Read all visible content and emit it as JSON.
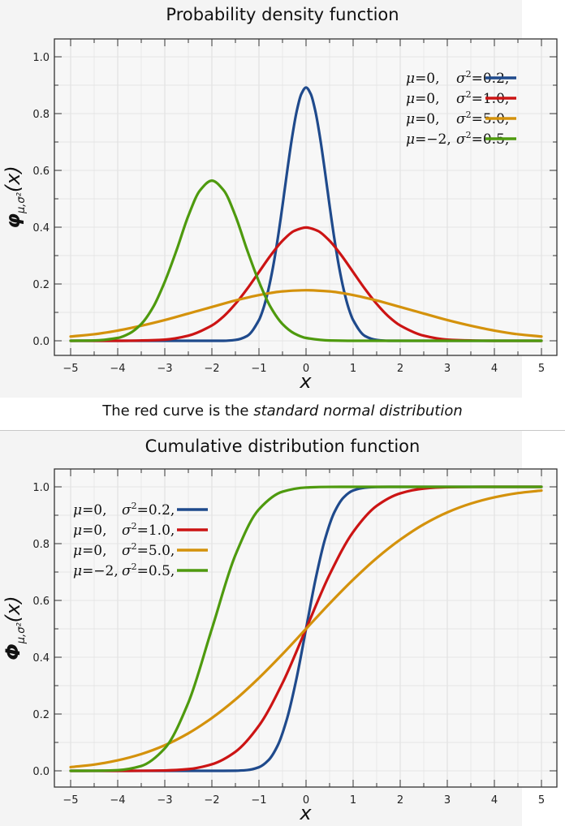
{
  "caption": {
    "prefix": "The red curve is the ",
    "emphasis": "standard normal distribution"
  },
  "chart_data": [
    {
      "type": "line",
      "title": "Probability density function",
      "xlabel": "x",
      "ylabel": "φμ,σ²(x)",
      "ylabel_main": "φ",
      "ylabel_sub": "μ,σ²",
      "ylabel_arg": "(x)",
      "xlim": [
        -5,
        5
      ],
      "ylim": [
        0,
        1.0
      ],
      "xticks": [
        -5,
        -4,
        -3,
        -2,
        -1,
        0,
        1,
        2,
        3,
        4,
        5
      ],
      "xtick_labels": [
        "−5",
        "−4",
        "−3",
        "−2",
        "−1",
        "0",
        "1",
        "2",
        "3",
        "4",
        "5"
      ],
      "yticks": [
        0.0,
        0.2,
        0.4,
        0.6,
        0.8,
        1.0
      ],
      "ytick_labels": [
        "0.0",
        "0.2",
        "0.4",
        "0.6",
        "0.8",
        "1.0"
      ],
      "grid": true,
      "legend_position": "top-right",
      "series": [
        {
          "mu": "0",
          "var": "0.2",
          "color": "#1f4a8c",
          "x": [
            -5,
            -4.5,
            -4,
            -3.5,
            -3,
            -2.5,
            -2,
            -1.75,
            -1.5,
            -1.25,
            -1,
            -0.9,
            -0.8,
            -0.7,
            -0.6,
            -0.5,
            -0.4,
            -0.3,
            -0.2,
            -0.1,
            0,
            0.1,
            0.2,
            0.3,
            0.4,
            0.5,
            0.6,
            0.7,
            0.8,
            0.9,
            1,
            1.25,
            1.5,
            1.75,
            2,
            2.5,
            3,
            3.5,
            4,
            4.5,
            5
          ],
          "y": [
            0,
            0,
            0,
            0,
            0,
            0,
            0,
            0,
            0.003,
            0.017,
            0.073,
            0.117,
            0.18,
            0.261,
            0.361,
            0.476,
            0.598,
            0.713,
            0.807,
            0.869,
            0.892,
            0.869,
            0.807,
            0.713,
            0.598,
            0.476,
            0.361,
            0.261,
            0.18,
            0.117,
            0.073,
            0.017,
            0.003,
            0,
            0,
            0,
            0,
            0,
            0,
            0,
            0
          ]
        },
        {
          "mu": "0",
          "var": "1.0",
          "color": "#cc1414",
          "x": [
            -5,
            -4.5,
            -4,
            -3.5,
            -3,
            -2.5,
            -2,
            -1.75,
            -1.5,
            -1.25,
            -1,
            -0.75,
            -0.5,
            -0.25,
            0,
            0.25,
            0.5,
            0.75,
            1,
            1.25,
            1.5,
            1.75,
            2,
            2.5,
            3,
            3.5,
            4,
            4.5,
            5
          ],
          "y": [
            0,
            0,
            0,
            0.001,
            0.004,
            0.018,
            0.054,
            0.086,
            0.13,
            0.183,
            0.242,
            0.301,
            0.352,
            0.387,
            0.399,
            0.387,
            0.352,
            0.301,
            0.242,
            0.183,
            0.13,
            0.086,
            0.054,
            0.018,
            0.004,
            0.001,
            0,
            0,
            0
          ]
        },
        {
          "mu": "0",
          "var": "5.0",
          "color": "#d4920c",
          "x": [
            -5,
            -4.5,
            -4,
            -3.5,
            -3,
            -2.5,
            -2,
            -1.5,
            -1,
            -0.5,
            0,
            0.5,
            1,
            1.5,
            2,
            2.5,
            3,
            3.5,
            4,
            4.5,
            5
          ],
          "y": [
            0.015,
            0.023,
            0.036,
            0.053,
            0.073,
            0.096,
            0.119,
            0.142,
            0.161,
            0.174,
            0.178,
            0.174,
            0.161,
            0.142,
            0.119,
            0.096,
            0.073,
            0.053,
            0.036,
            0.023,
            0.015
          ]
        },
        {
          "mu": "−2",
          "var": "0.5",
          "color": "#4e9a0e",
          "x": [
            -5,
            -4.5,
            -4,
            -3.75,
            -3.5,
            -3.25,
            -3,
            -2.75,
            -2.5,
            -2.25,
            -2,
            -1.75,
            -1.5,
            -1.25,
            -1,
            -0.75,
            -0.5,
            -0.25,
            0,
            0.5,
            1,
            2,
            3,
            4,
            5
          ],
          "y": [
            0,
            0.001,
            0.01,
            0.026,
            0.059,
            0.118,
            0.208,
            0.319,
            0.44,
            0.53,
            0.564,
            0.53,
            0.44,
            0.319,
            0.208,
            0.118,
            0.059,
            0.026,
            0.01,
            0.001,
            0,
            0,
            0,
            0,
            0
          ]
        }
      ]
    },
    {
      "type": "line",
      "title": "Cumulative distribution function",
      "xlabel": "x",
      "ylabel": "Φμ,σ²(x)",
      "ylabel_main": "Φ",
      "ylabel_sub": "μ,σ²",
      "ylabel_arg": "(x)",
      "xlim": [
        -5,
        5
      ],
      "ylim": [
        0,
        1.0
      ],
      "xticks": [
        -5,
        -4,
        -3,
        -2,
        -1,
        0,
        1,
        2,
        3,
        4,
        5
      ],
      "xtick_labels": [
        "−5",
        "−4",
        "−3",
        "−2",
        "−1",
        "0",
        "1",
        "2",
        "3",
        "4",
        "5"
      ],
      "yticks": [
        0.0,
        0.2,
        0.4,
        0.6,
        0.8,
        1.0
      ],
      "ytick_labels": [
        "0.0",
        "0.2",
        "0.4",
        "0.6",
        "0.8",
        "1.0"
      ],
      "grid": true,
      "legend_position": "top-left",
      "series": [
        {
          "mu": "0",
          "var": "0.2",
          "color": "#1f4a8c",
          "x": [
            -5,
            -2,
            -1.5,
            -1.25,
            -1,
            -0.8,
            -0.6,
            -0.4,
            -0.2,
            0,
            0.2,
            0.4,
            0.6,
            0.8,
            1,
            1.25,
            1.5,
            2,
            5
          ],
          "y": [
            0,
            0,
            0.0004,
            0.0026,
            0.0127,
            0.037,
            0.09,
            0.186,
            0.327,
            0.5,
            0.673,
            0.814,
            0.91,
            0.963,
            0.987,
            0.997,
            0.9996,
            1,
            1
          ]
        },
        {
          "mu": "0",
          "var": "1.0",
          "color": "#cc1414",
          "x": [
            -5,
            -4,
            -3.5,
            -3,
            -2.5,
            -2,
            -1.5,
            -1,
            -0.5,
            0,
            0.5,
            1,
            1.5,
            2,
            2.5,
            3,
            3.5,
            4,
            5
          ],
          "y": [
            0,
            0,
            0.0002,
            0.0013,
            0.006,
            0.023,
            0.067,
            0.159,
            0.309,
            0.5,
            0.691,
            0.841,
            0.933,
            0.977,
            0.994,
            0.9987,
            0.9998,
            1,
            1
          ]
        },
        {
          "mu": "0",
          "var": "5.0",
          "color": "#d4920c",
          "x": [
            -5,
            -4.5,
            -4,
            -3.5,
            -3,
            -2.5,
            -2,
            -1.5,
            -1,
            -0.5,
            0,
            0.5,
            1,
            1.5,
            2,
            2.5,
            3,
            3.5,
            4,
            4.5,
            5
          ],
          "y": [
            0.013,
            0.022,
            0.037,
            0.059,
            0.09,
            0.132,
            0.186,
            0.251,
            0.327,
            0.411,
            0.5,
            0.589,
            0.673,
            0.749,
            0.814,
            0.868,
            0.91,
            0.941,
            0.963,
            0.978,
            0.987
          ]
        },
        {
          "mu": "−2",
          "var": "0.5",
          "color": "#4e9a0e",
          "x": [
            -5,
            -4.5,
            -4,
            -3.5,
            -3,
            -2.5,
            -2,
            -1.5,
            -1,
            -0.5,
            0,
            0.5,
            1,
            5
          ],
          "y": [
            0,
            0.0002,
            0.0023,
            0.017,
            0.079,
            0.24,
            0.5,
            0.76,
            0.921,
            0.983,
            0.9977,
            0.9998,
            1,
            1
          ]
        }
      ]
    }
  ]
}
